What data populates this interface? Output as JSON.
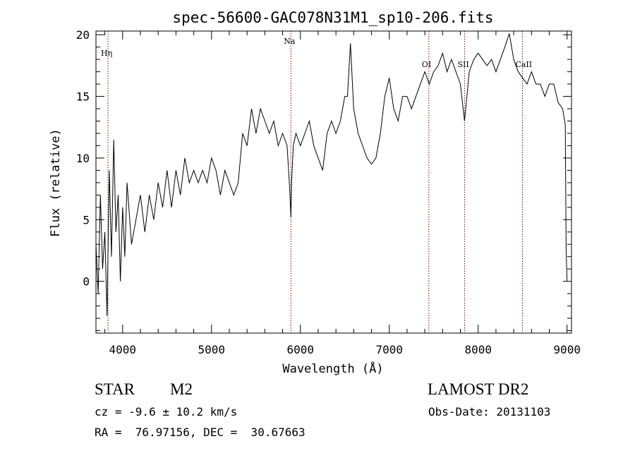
{
  "chart_data": {
    "type": "line",
    "title": "spec-56600-GAC078N31M1_sp10-206.fits",
    "xlabel": "Wavelength (Å)",
    "ylabel": "Flux (relative)",
    "xlim": [
      3700,
      9050
    ],
    "ylim": [
      -4.2,
      20.3
    ],
    "xticks": [
      4000,
      5000,
      6000,
      7000,
      8000,
      9000
    ],
    "yticks": [
      0,
      5,
      10,
      15,
      20
    ],
    "grid": false,
    "line_color": "#000000",
    "marker_color": "#8b0000",
    "lines": [
      {
        "label": "Hη",
        "x": 3835
      },
      {
        "label": "Na",
        "x": 5893
      },
      {
        "label": "OI",
        "x": 7445
      },
      {
        "label": "SII",
        "x": 7847
      },
      {
        "label": "CaII",
        "x": 8498
      }
    ],
    "series": [
      {
        "x": [
          3700,
          3725,
          3750,
          3775,
          3800,
          3825,
          3850,
          3875,
          3900,
          3925,
          3950,
          3975,
          4000,
          4025,
          4050,
          4100,
          4150,
          4200,
          4250,
          4300,
          4350,
          4400,
          4450,
          4500,
          4550,
          4600,
          4650,
          4700,
          4750,
          4800,
          4850,
          4900,
          4950,
          5000,
          5050,
          5100,
          5150,
          5200,
          5250,
          5300,
          5350,
          5400,
          5450,
          5500,
          5550,
          5600,
          5650,
          5700,
          5750,
          5800,
          5850,
          5880,
          5893,
          5900,
          5920,
          5950,
          6000,
          6050,
          6100,
          6150,
          6200,
          6250,
          6300,
          6350,
          6400,
          6450,
          6500,
          6530,
          6563,
          6600,
          6650,
          6700,
          6750,
          6800,
          6850,
          6900,
          6950,
          7000,
          7050,
          7100,
          7150,
          7200,
          7250,
          7300,
          7350,
          7400,
          7450,
          7500,
          7550,
          7600,
          7650,
          7700,
          7750,
          7800,
          7847,
          7900,
          7950,
          8000,
          8050,
          8100,
          8150,
          8200,
          8250,
          8300,
          8350,
          8400,
          8450,
          8500,
          8550,
          8600,
          8650,
          8700,
          8750,
          8800,
          8850,
          8900,
          8950,
          8980,
          8990,
          9000
        ],
        "y": [
          3,
          -1,
          7,
          1,
          4,
          -2.8,
          9,
          2,
          11.5,
          4,
          7,
          0,
          6,
          2,
          8,
          3,
          5,
          7,
          4,
          7,
          5,
          8,
          6,
          9,
          6,
          9,
          7,
          10,
          8,
          9,
          8,
          9,
          8,
          10,
          9,
          7,
          9,
          8,
          7,
          8,
          12,
          11,
          14,
          12,
          14,
          13,
          12,
          13,
          11,
          12,
          11,
          7.5,
          5.2,
          8,
          11,
          12,
          11,
          12,
          13,
          11,
          10,
          9,
          12,
          13,
          12,
          13,
          15,
          15,
          19.3,
          14,
          12,
          11,
          10,
          9.5,
          10,
          12,
          15,
          16.5,
          14,
          13,
          15,
          15,
          14,
          15,
          16,
          17,
          16,
          17,
          17.5,
          18.5,
          17,
          18,
          17,
          16,
          13,
          17,
          18,
          18.5,
          18,
          17.5,
          18,
          17,
          18,
          19,
          20.1,
          18,
          17,
          16.5,
          16,
          17,
          16,
          16,
          15,
          16,
          16,
          14.5,
          14,
          12.7,
          2.5,
          0
        ]
      }
    ]
  },
  "info": {
    "object_type": "STAR",
    "subclass": "M2",
    "survey": "LAMOST DR2",
    "redshift": "cz = -9.6 ± 10.2 km/s",
    "obs_date": "Obs-Date: 20131103",
    "coords": "RA =  76.97156, DEC =  30.67663"
  }
}
